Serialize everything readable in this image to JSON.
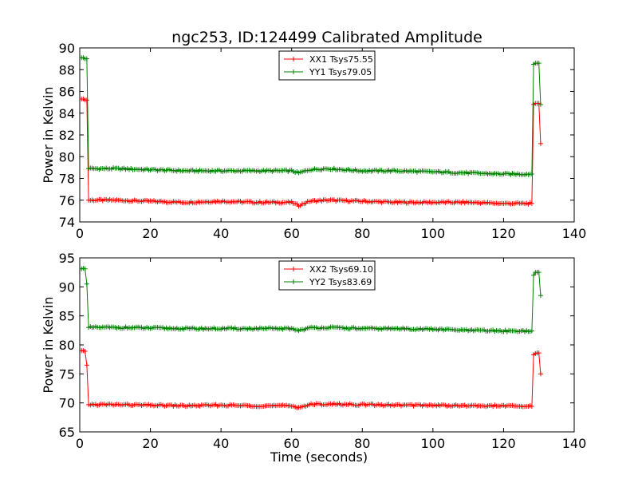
{
  "title": "ngc253, ID:124499 Calibrated Amplitude",
  "chart_data": [
    {
      "type": "line",
      "xlabel": "",
      "ylabel": "Power in Kelvin",
      "xlim": [
        0,
        140
      ],
      "ylim": [
        74,
        90
      ],
      "xticks": [
        "0",
        "20",
        "40",
        "60",
        "80",
        "100",
        "120",
        "140"
      ],
      "yticks": [
        "74",
        "76",
        "78",
        "80",
        "82",
        "84",
        "86",
        "88",
        "90"
      ],
      "legend_position": "top-center",
      "series": [
        {
          "name": "XX1 Tsys75.55",
          "color": "#ff0000",
          "x": [
            0.5,
            1.0,
            1.5,
            2.0,
            2.5,
            3,
            10,
            20,
            30,
            40,
            50,
            55,
            60,
            62,
            65,
            70,
            80,
            90,
            100,
            110,
            120,
            125,
            128,
            128.5,
            129,
            129.5,
            130,
            130.5
          ],
          "y": [
            85.3,
            85.3,
            85.2,
            85.2,
            76.0,
            76.0,
            76.0,
            75.9,
            75.8,
            75.9,
            75.8,
            75.8,
            75.8,
            75.5,
            75.9,
            76.0,
            75.9,
            75.8,
            75.8,
            75.8,
            75.7,
            75.7,
            75.7,
            84.8,
            84.9,
            84.9,
            84.9,
            81.2
          ]
        },
        {
          "name": "YY1 Tsys79.05",
          "color": "#008000",
          "x": [
            0.5,
            1.0,
            1.5,
            2.0,
            2.5,
            3,
            10,
            20,
            30,
            40,
            50,
            55,
            60,
            62,
            65,
            70,
            80,
            90,
            100,
            110,
            120,
            125,
            128,
            128.5,
            129,
            129.5,
            130,
            130.5
          ],
          "y": [
            89.1,
            89.1,
            89.0,
            89.0,
            78.9,
            78.9,
            78.9,
            78.8,
            78.7,
            78.7,
            78.7,
            78.7,
            78.7,
            78.5,
            78.8,
            78.9,
            78.7,
            78.7,
            78.6,
            78.5,
            78.4,
            78.4,
            78.4,
            88.5,
            88.6,
            88.6,
            88.6,
            84.8
          ]
        }
      ]
    },
    {
      "type": "line",
      "xlabel": "Time (seconds)",
      "ylabel": "Power in Kelvin",
      "xlim": [
        0,
        140
      ],
      "ylim": [
        65,
        95
      ],
      "xticks": [
        "0",
        "20",
        "40",
        "60",
        "80",
        "100",
        "120",
        "140"
      ],
      "yticks": [
        "65",
        "70",
        "75",
        "80",
        "85",
        "90",
        "95"
      ],
      "legend_position": "top-center",
      "series": [
        {
          "name": "XX2 Tsys69.10",
          "color": "#ff0000",
          "x": [
            0.5,
            1.0,
            1.5,
            2.0,
            2.5,
            3,
            10,
            20,
            30,
            40,
            50,
            55,
            60,
            62,
            65,
            70,
            80,
            90,
            100,
            110,
            120,
            125,
            128,
            128.5,
            129,
            129.5,
            130,
            130.5
          ],
          "y": [
            79.0,
            79.0,
            78.9,
            76.5,
            69.7,
            69.7,
            69.7,
            69.6,
            69.5,
            69.6,
            69.5,
            69.5,
            69.5,
            69.2,
            69.7,
            69.8,
            69.7,
            69.6,
            69.6,
            69.5,
            69.5,
            69.4,
            69.4,
            78.3,
            78.5,
            78.6,
            78.6,
            75.0
          ]
        },
        {
          "name": "YY2 Tsys83.69",
          "color": "#008000",
          "x": [
            0.5,
            1.0,
            1.5,
            2.0,
            2.5,
            3,
            10,
            20,
            30,
            40,
            50,
            55,
            60,
            62,
            65,
            70,
            80,
            90,
            100,
            110,
            120,
            125,
            128,
            128.5,
            129,
            129.5,
            130,
            130.5
          ],
          "y": [
            93.1,
            93.2,
            93.1,
            90.5,
            83.0,
            83.0,
            83.0,
            82.9,
            82.8,
            82.8,
            82.8,
            82.8,
            82.8,
            82.5,
            82.9,
            83.0,
            82.8,
            82.8,
            82.7,
            82.5,
            82.4,
            82.4,
            82.4,
            92.0,
            92.5,
            92.5,
            92.5,
            88.5
          ]
        }
      ]
    }
  ]
}
